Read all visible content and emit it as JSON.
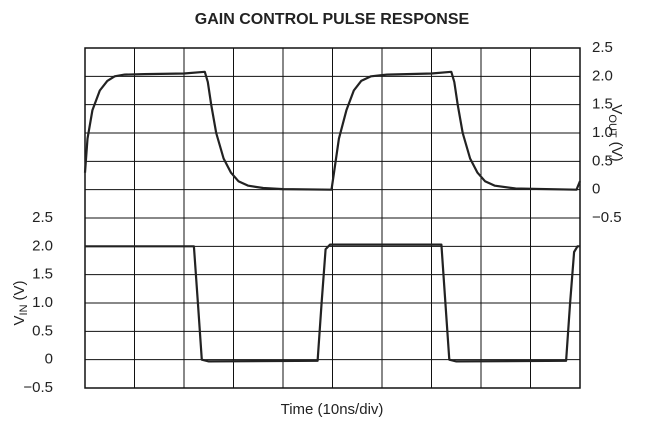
{
  "chart_data": {
    "type": "line",
    "title": "GAIN CONTROL PULSE RESPONSE",
    "xlabel": "Time (10ns/div)",
    "ylabel": {
      "symbol": "V",
      "subscript": "IN",
      "unit": "(V)"
    },
    "y2label": {
      "symbol": "V",
      "subscript": "OUT",
      "unit": "(V)"
    },
    "xlim": [
      0,
      10
    ],
    "xticks": [
      0,
      1,
      2,
      3,
      4,
      5,
      6,
      7,
      8,
      9,
      10
    ],
    "ylim": [
      -0.5,
      5.5
    ],
    "yticks": [
      {
        "value": -0.5,
        "label": "−0.5"
      },
      0,
      0.5,
      {
        "value": 1,
        "label": "1.0"
      },
      1.5,
      {
        "value": 2,
        "label": "2.0"
      },
      2.5
    ],
    "y2lim": [
      -3.5,
      2.5
    ],
    "y2ticks": [
      {
        "value": -0.5,
        "label": "−0.5"
      },
      0,
      0.5,
      {
        "value": 1,
        "label": "1.0"
      },
      1.5,
      {
        "value": 2,
        "label": "2.0"
      },
      2.5
    ],
    "grid": true,
    "series": [
      {
        "name": "VOUT",
        "axis": "y2",
        "color": "#222222",
        "x": [
          0,
          0.05,
          0.15,
          0.3,
          0.45,
          0.6,
          0.8,
          1.2,
          2.0,
          2.42,
          2.48,
          2.55,
          2.65,
          2.8,
          2.95,
          3.1,
          3.3,
          3.6,
          4.0,
          4.98,
          5.03,
          5.13,
          5.28,
          5.43,
          5.58,
          5.78,
          6.1,
          7.0,
          7.4,
          7.46,
          7.53,
          7.63,
          7.78,
          7.93,
          8.08,
          8.28,
          8.7,
          9.93,
          10
        ],
        "values": [
          0.3,
          0.9,
          1.4,
          1.75,
          1.92,
          2.0,
          2.03,
          2.04,
          2.05,
          2.08,
          1.9,
          1.5,
          1.0,
          0.55,
          0.3,
          0.15,
          0.07,
          0.03,
          0.01,
          0.0,
          0.3,
          0.9,
          1.4,
          1.75,
          1.92,
          2.0,
          2.03,
          2.05,
          2.08,
          1.9,
          1.5,
          1.0,
          0.55,
          0.3,
          0.15,
          0.07,
          0.02,
          0.0,
          0.15
        ]
      },
      {
        "name": "VIN",
        "axis": "y",
        "color": "#222222",
        "x": [
          0,
          2.2,
          2.28,
          2.36,
          2.5,
          4.7,
          4.78,
          4.86,
          4.95,
          7.2,
          7.28,
          7.36,
          7.5,
          9.72,
          9.8,
          9.88,
          9.95,
          10
        ],
        "values": [
          2.0,
          2.0,
          1.0,
          0.0,
          -0.03,
          -0.02,
          1.0,
          1.95,
          2.03,
          2.03,
          1.0,
          0.0,
          -0.03,
          -0.02,
          1.0,
          1.9,
          2.0,
          2.0
        ]
      }
    ]
  }
}
